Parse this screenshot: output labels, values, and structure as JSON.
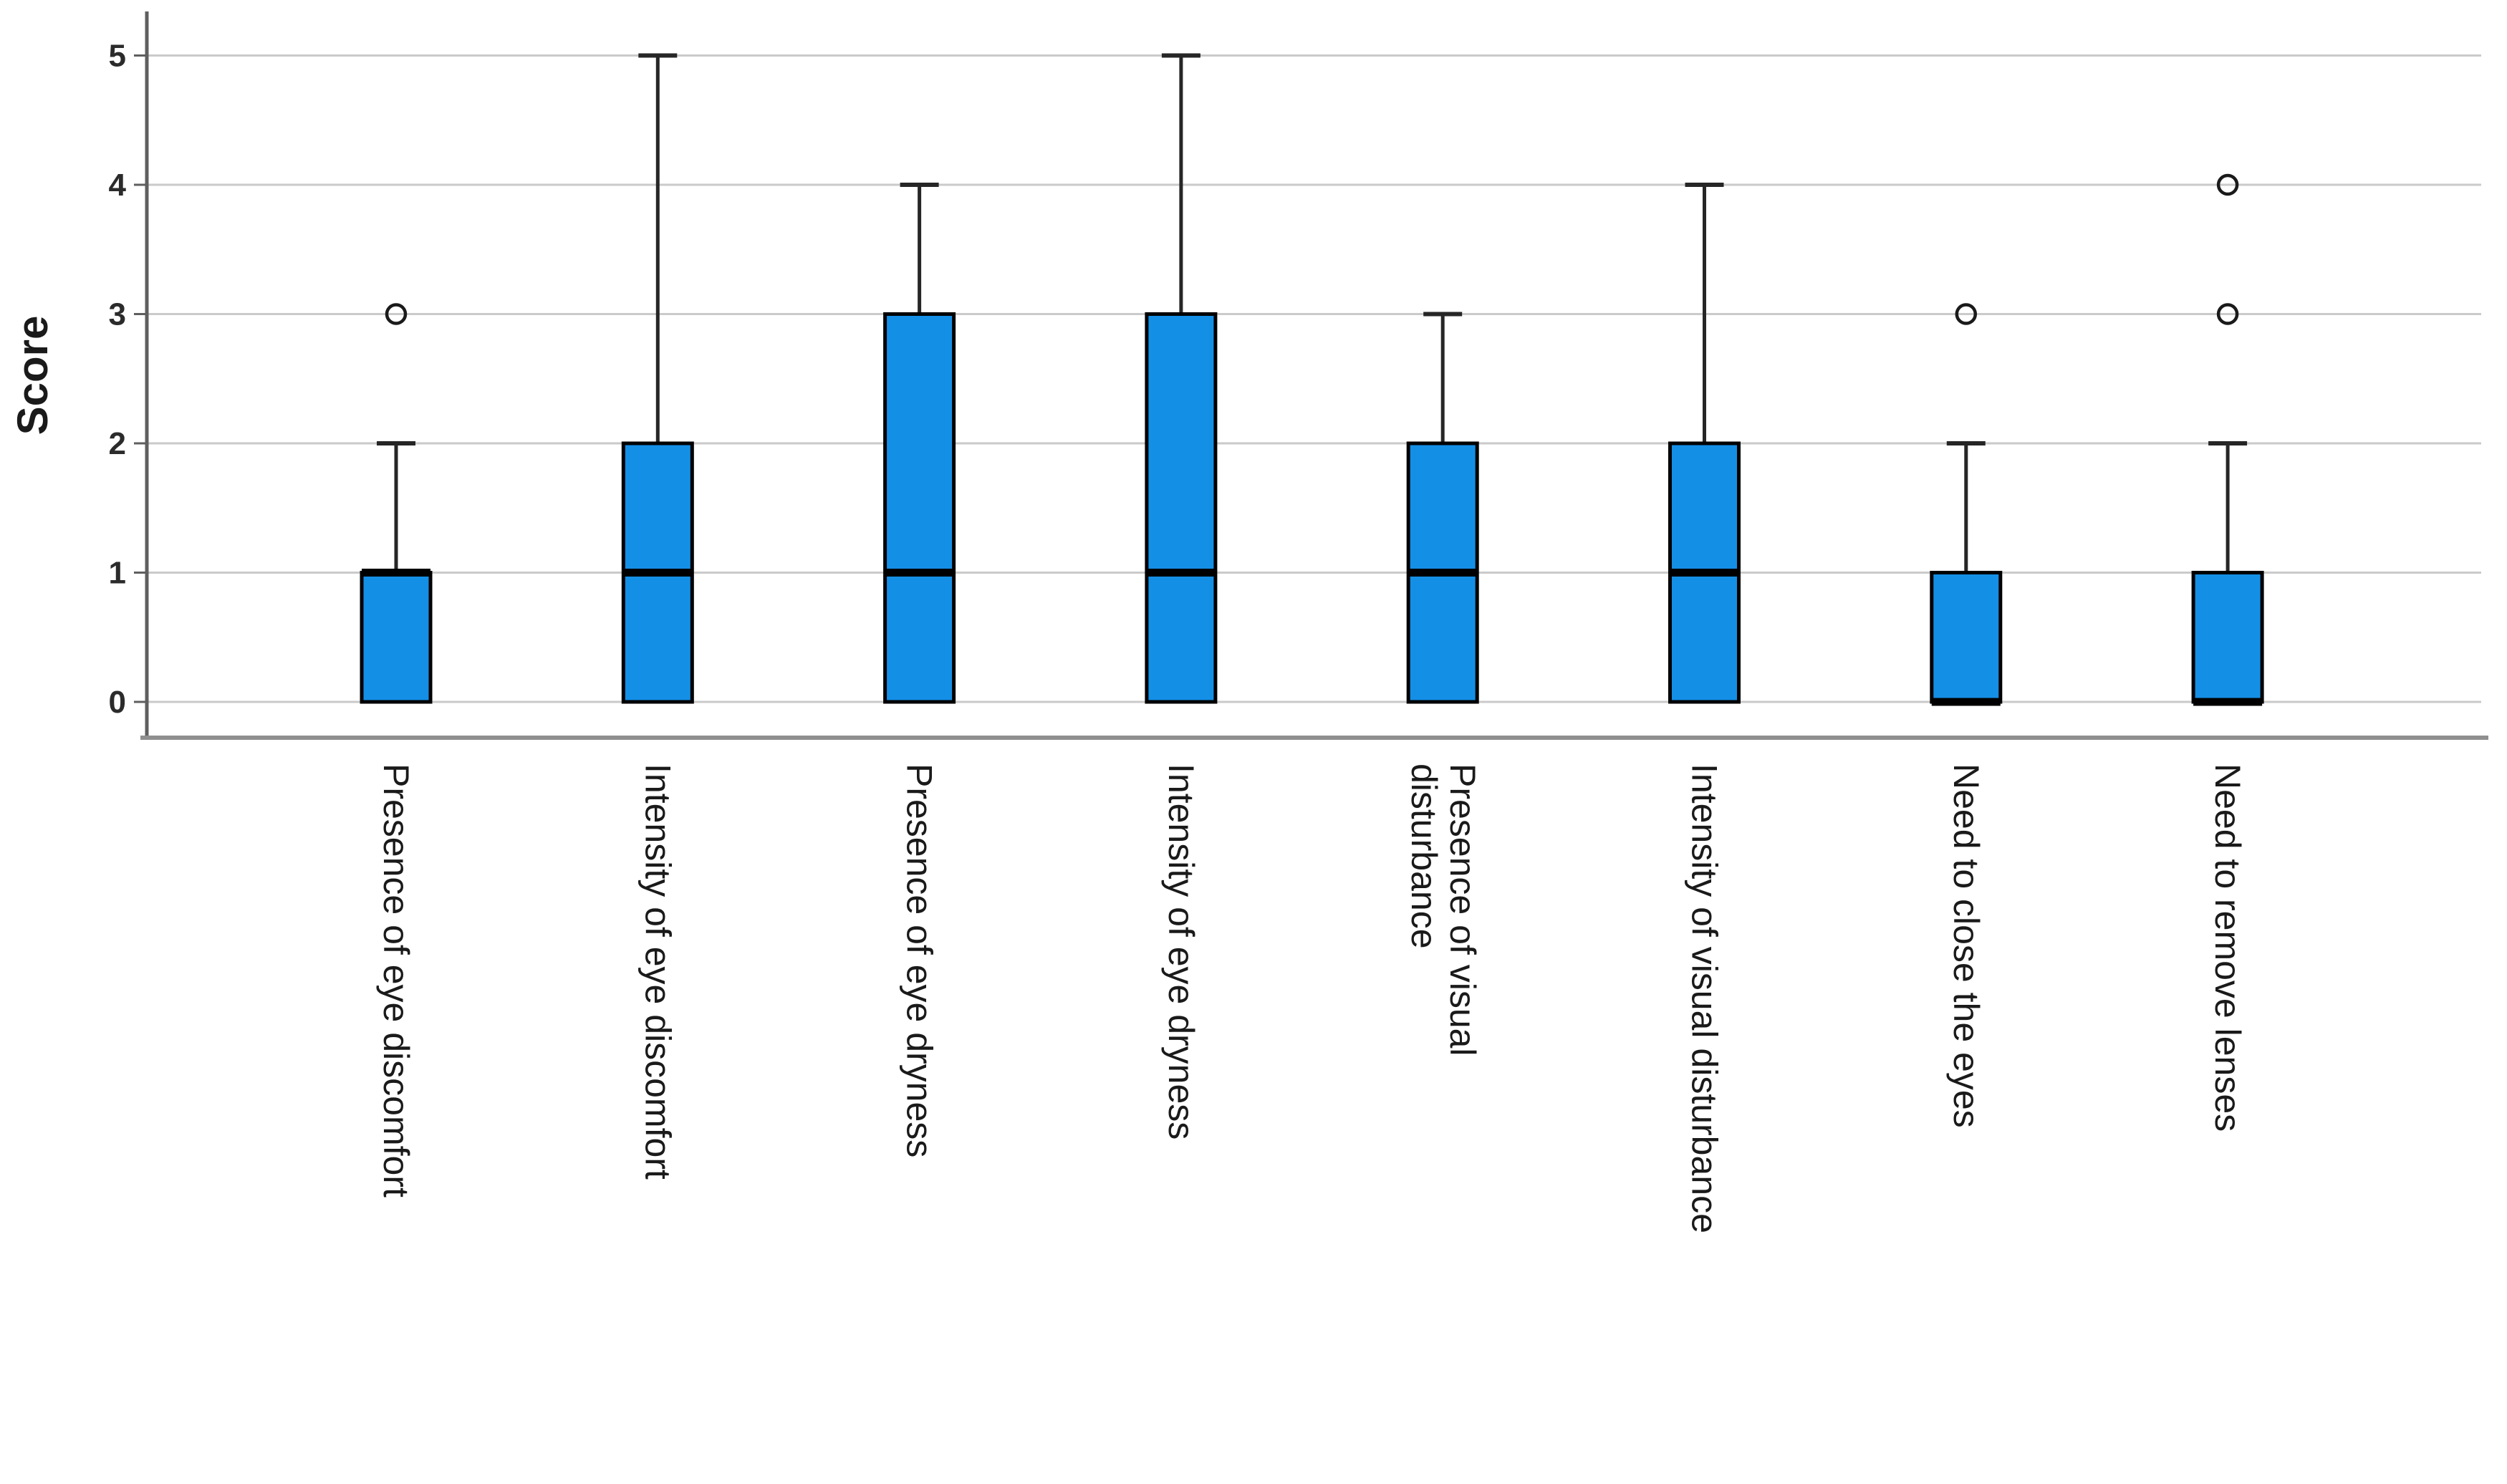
{
  "figure": {
    "background": "#ffffff"
  },
  "chart_data": {
    "type": "boxplot",
    "title": "",
    "ylabel": "Score",
    "xlabel": "",
    "ylim": [
      0,
      5
    ],
    "yticks": [
      0,
      1,
      2,
      3,
      4,
      5
    ],
    "grid": "horizontal-gridlines-on",
    "legend": "none",
    "categories": [
      "Presence of eye discomfort",
      "Intensity of eye discomfort",
      "Presence of eye dryness",
      "Intensity of eye dryness",
      "Presence of visual disturbance",
      "Intensity of visual disturbance",
      "Need to close the eyes",
      "Need to remove lenses"
    ],
    "category_label_lines": [
      [
        "Presence of eye discomfort"
      ],
      [
        "Intensity of eye discomfort"
      ],
      [
        "Presence of eye dryness"
      ],
      [
        "Intensity of eye dryness"
      ],
      [
        "Presence of visual",
        "disturbance"
      ],
      [
        "Intensity of visual disturbance"
      ],
      [
        "Need to close the eyes"
      ],
      [
        "Need to remove lenses"
      ]
    ],
    "series": [
      {
        "category": "Presence of eye discomfort",
        "q1": 0,
        "median": 1,
        "q3": 1,
        "whisker_low": 0,
        "whisker_high": 2,
        "outliers": [
          3
        ]
      },
      {
        "category": "Intensity of eye discomfort",
        "q1": 0,
        "median": 1,
        "q3": 2,
        "whisker_low": 0,
        "whisker_high": 5,
        "outliers": []
      },
      {
        "category": "Presence of eye dryness",
        "q1": 0,
        "median": 1,
        "q3": 3,
        "whisker_low": 0,
        "whisker_high": 4,
        "outliers": []
      },
      {
        "category": "Intensity of eye dryness",
        "q1": 0,
        "median": 1,
        "q3": 3,
        "whisker_low": 0,
        "whisker_high": 5,
        "outliers": []
      },
      {
        "category": "Presence of visual disturbance",
        "q1": 0,
        "median": 1,
        "q3": 2,
        "whisker_low": 0,
        "whisker_high": 3,
        "outliers": []
      },
      {
        "category": "Intensity of visual disturbance",
        "q1": 0,
        "median": 1,
        "q3": 2,
        "whisker_low": 0,
        "whisker_high": 4,
        "outliers": []
      },
      {
        "category": "Need to close the eyes",
        "q1": 0,
        "median": 0,
        "q3": 1,
        "whisker_low": 0,
        "whisker_high": 2,
        "outliers": [
          3
        ]
      },
      {
        "category": "Need to remove lenses",
        "q1": 0,
        "median": 0,
        "q3": 1,
        "whisker_low": 0,
        "whisker_high": 2,
        "outliers": [
          3,
          4
        ]
      }
    ],
    "colors": {
      "box_fill": "#148fe6",
      "box_border": "#000000",
      "median": "#000000",
      "whisker": "#262626",
      "outlier_stroke": "#1a1a1a",
      "gridline": "#cacaca",
      "y_axis": "#5f5f5f",
      "x_axis": "#8f8f8f",
      "tick_text": "#2b2b2b",
      "label_text": "#1a1a1a"
    }
  }
}
